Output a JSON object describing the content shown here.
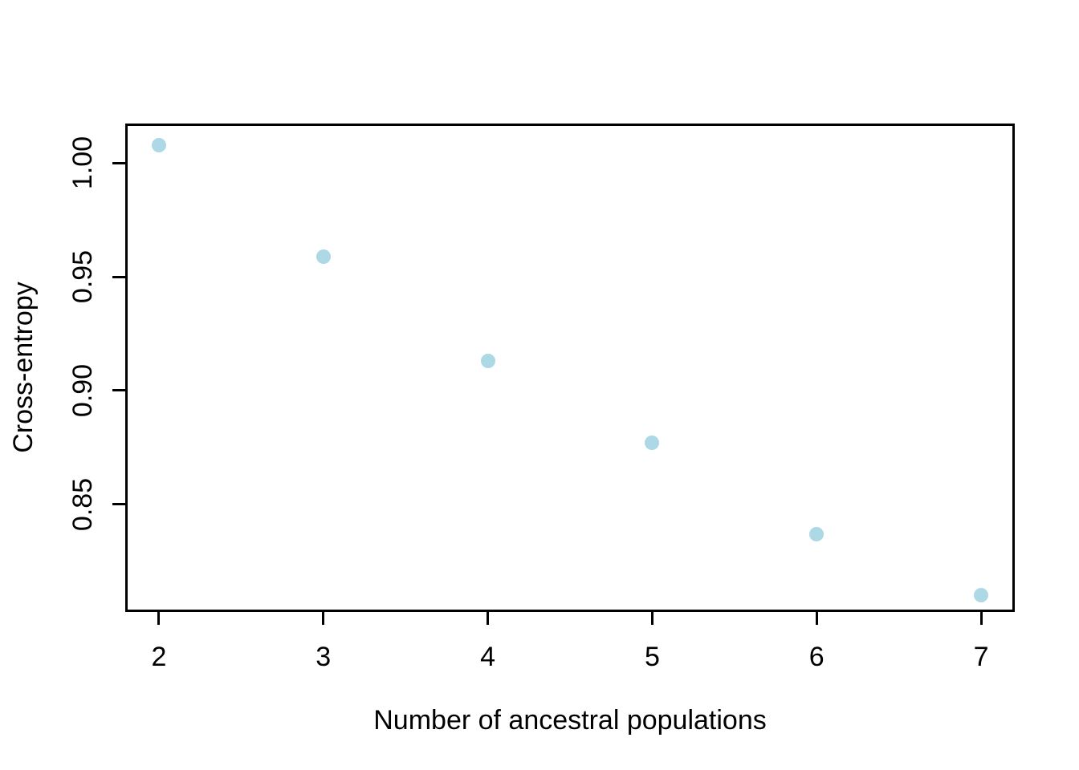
{
  "chart_data": {
    "type": "scatter",
    "title": "",
    "xlabel": "Number of ancestral populations",
    "ylabel": "Cross-entropy",
    "x": [
      2,
      3,
      4,
      5,
      6,
      7
    ],
    "y": [
      1.008,
      0.959,
      0.913,
      0.877,
      0.837,
      0.81
    ],
    "series_name": "cross-entropy",
    "xlim": [
      1.8,
      7.2
    ],
    "ylim": [
      0.803,
      1.017
    ],
    "xticks": [
      2,
      3,
      4,
      5,
      6,
      7
    ],
    "xtick_labels": [
      "2",
      "3",
      "4",
      "5",
      "6",
      "7"
    ],
    "yticks": [
      0.85,
      0.9,
      0.95,
      1.0
    ],
    "ytick_labels": [
      "0.85",
      "0.90",
      "0.95",
      "1.00"
    ],
    "grid": false,
    "legend": null,
    "point_color": "#ADD8E6",
    "axis_color": "#000000",
    "background_color": "#FFFFFF"
  }
}
